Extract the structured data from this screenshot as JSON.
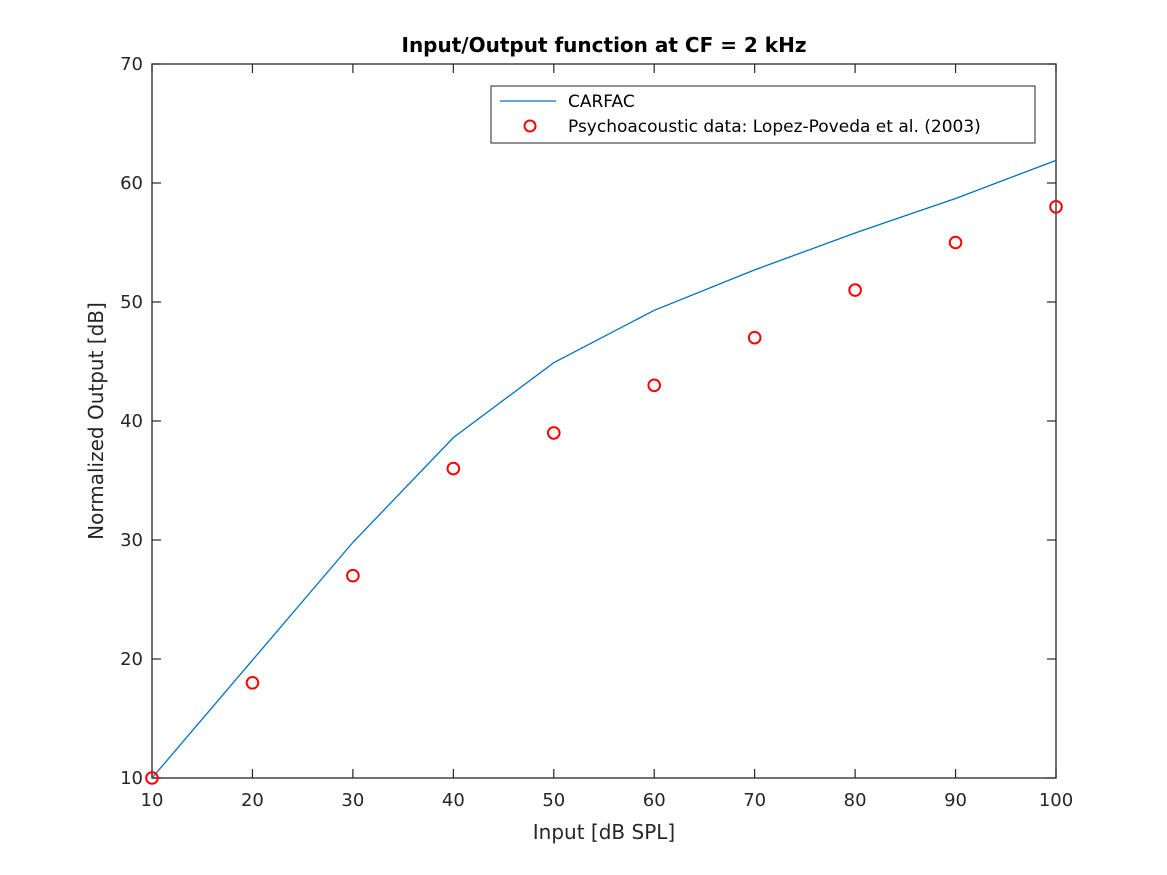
{
  "chart_data": {
    "type": "line",
    "title": "Input/Output function at CF = 2 kHz",
    "xlabel": "Input [dB SPL]",
    "ylabel": "Normalized Output [dB]",
    "xlim": [
      10,
      100
    ],
    "ylim": [
      10,
      70
    ],
    "xticks": [
      10,
      20,
      30,
      40,
      50,
      60,
      70,
      80,
      90,
      100
    ],
    "yticks": [
      10,
      20,
      30,
      40,
      50,
      60,
      70
    ],
    "grid": false,
    "legend_position": "northeast",
    "series": [
      {
        "name": "CARFAC",
        "style": "line",
        "color": "#0072BD",
        "x": [
          10,
          20,
          30,
          40,
          50,
          60,
          70,
          80,
          90,
          100
        ],
        "y": [
          10,
          19.9,
          29.8,
          38.6,
          44.9,
          49.3,
          52.7,
          55.8,
          58.7,
          61.9
        ]
      },
      {
        "name": "Psychoacoustic data: Lopez-Poveda et al. (2003)",
        "style": "marker-circle",
        "color": "#FF0000",
        "x": [
          10,
          20,
          30,
          40,
          50,
          60,
          70,
          80,
          90,
          100
        ],
        "y": [
          10,
          18,
          27,
          36,
          39,
          43,
          47,
          51,
          55,
          58
        ]
      }
    ]
  },
  "legend": {
    "entries": [
      "CARFAC",
      "Psychoacoustic data: Lopez-Poveda et al. (2003)"
    ]
  },
  "axes_colors": {
    "axis": "#262626",
    "line": "#0072BD",
    "marker": "#FF0000"
  }
}
